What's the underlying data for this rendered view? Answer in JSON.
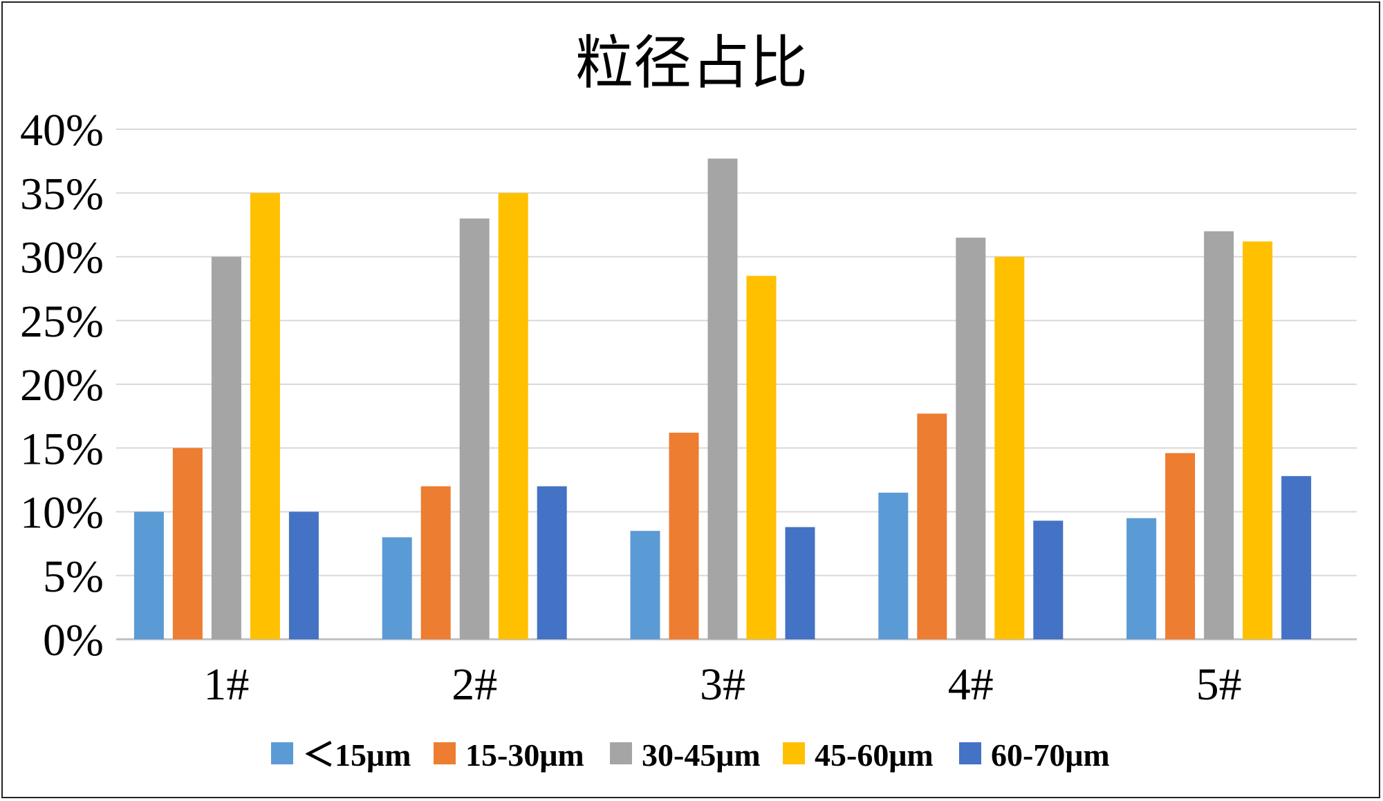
{
  "chart_data": {
    "type": "bar",
    "title": "粒径占比",
    "xlabel": "",
    "ylabel": "",
    "categories": [
      "1#",
      "2#",
      "3#",
      "4#",
      "5#"
    ],
    "ylim": [
      0,
      40
    ],
    "yticks": [
      "0%",
      "5%",
      "10%",
      "15%",
      "20%",
      "25%",
      "30%",
      "35%",
      "40%"
    ],
    "grid": true,
    "legend_position": "bottom",
    "series": [
      {
        "name": "＜15μm",
        "color": "#5B9BD5",
        "values": [
          10,
          8,
          8.5,
          11.5,
          9.5
        ]
      },
      {
        "name": "15-30μm",
        "color": "#ED7D31",
        "values": [
          15,
          12,
          16.2,
          17.7,
          14.6
        ]
      },
      {
        "name": "30-45μm",
        "color": "#A5A5A5",
        "values": [
          30,
          33,
          37.7,
          31.5,
          32
        ]
      },
      {
        "name": "45-60μm",
        "color": "#FFC000",
        "values": [
          35,
          35,
          28.5,
          30,
          31.2
        ]
      },
      {
        "name": "60-70μm",
        "color": "#4472C4",
        "values": [
          10,
          12,
          8.8,
          9.3,
          12.8
        ]
      }
    ]
  }
}
